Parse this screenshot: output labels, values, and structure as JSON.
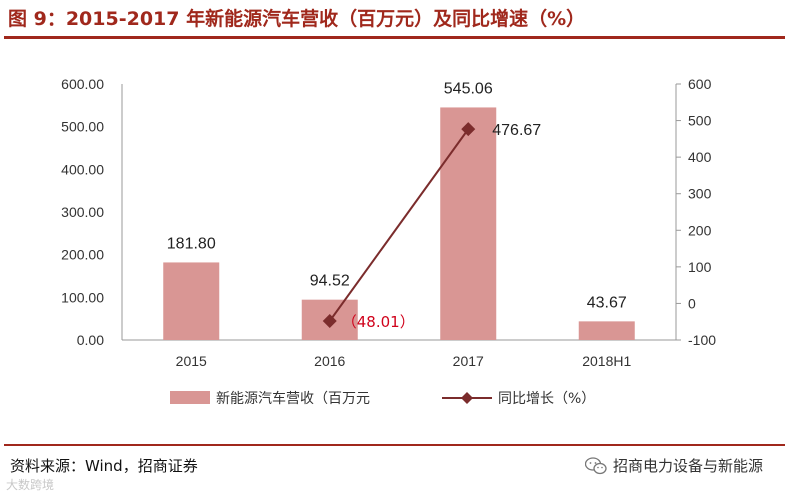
{
  "header": {
    "title": "图 9：2015-2017 年新能源汽车营收（百万元）及同比增速（%）"
  },
  "footer": {
    "source": "资料来源：Wind，招商证券",
    "brand": "招商电力设备与新能源",
    "watermark": "大数跨境"
  },
  "colors": {
    "bar": "#d99694",
    "line": "#7b2c2c",
    "accent": "#a0281c",
    "negative_label": "#d0021b"
  },
  "chart_data": {
    "type": "bar",
    "categories": [
      "2015",
      "2016",
      "2017",
      "2018H1"
    ],
    "series": [
      {
        "name": "新能源汽车营收（百万元",
        "type": "bar",
        "axis": "left",
        "values": [
          181.8,
          94.52,
          545.06,
          43.67
        ],
        "labels": [
          "181.80",
          "94.52",
          "545.06",
          "43.67"
        ]
      },
      {
        "name": "同比增长（%）",
        "type": "line",
        "axis": "right",
        "marker": "diamond",
        "values": [
          null,
          -48.01,
          476.67,
          null
        ],
        "labels": [
          "",
          "（48.01）",
          "476.67",
          ""
        ]
      }
    ],
    "left_axis": {
      "min": 0,
      "max": 600,
      "step": 100,
      "ticks": [
        "0.00",
        "100.00",
        "200.00",
        "300.00",
        "400.00",
        "500.00",
        "600.00"
      ]
    },
    "right_axis": {
      "min": -100,
      "max": 600,
      "step": 100,
      "ticks": [
        "-100",
        "0",
        "100",
        "200",
        "300",
        "400",
        "500",
        "600"
      ]
    },
    "grid": false,
    "legend_position": "bottom"
  }
}
